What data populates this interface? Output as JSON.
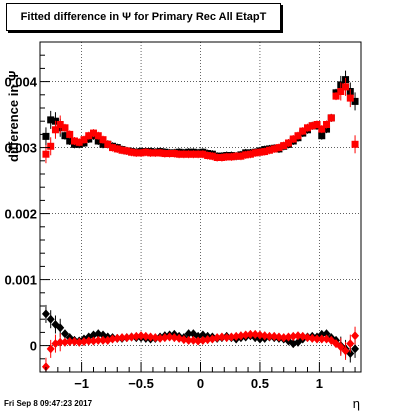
{
  "title": "Fitted difference in Ψ  for Primary Rec All EtapT",
  "footer": "Fri Sep  8 09:47:23 2017",
  "chart_data": {
    "type": "scatter",
    "title": "Fitted difference in Ψ  for Primary Rec All EtapT",
    "xlabel": "η",
    "ylabel": "difference in  Ψ",
    "xlim": [
      -1.35,
      1.35
    ],
    "ylim": [
      -0.0004,
      0.0046
    ],
    "x_ticks": [
      -1,
      -0.5,
      0,
      0.5,
      1
    ],
    "x_tick_labels": [
      "−1",
      "−0.5",
      "0",
      "0.5",
      "1"
    ],
    "y_ticks": [
      0,
      0.001,
      0.002,
      0.003,
      0.004
    ],
    "y_tick_labels": [
      "0",
      "0.001",
      "0.002",
      "0.003",
      "0.004"
    ],
    "grid": true,
    "series": [
      {
        "color": "#000000",
        "marker": "square",
        "x": [
          -1.3,
          -1.26,
          -1.22,
          -1.18,
          -1.14,
          -1.1,
          -1.06,
          -1.02,
          -0.98,
          -0.94,
          -0.9,
          -0.86,
          -0.82,
          -0.78,
          -0.74,
          -0.7,
          -0.66,
          -0.62,
          -0.58,
          -0.54,
          -0.5,
          -0.46,
          -0.42,
          -0.38,
          -0.34,
          -0.3,
          -0.26,
          -0.22,
          -0.18,
          -0.14,
          -0.1,
          -0.06,
          -0.02,
          0.02,
          0.06,
          0.1,
          0.14,
          0.18,
          0.22,
          0.26,
          0.3,
          0.34,
          0.38,
          0.42,
          0.46,
          0.5,
          0.54,
          0.58,
          0.62,
          0.66,
          0.7,
          0.74,
          0.78,
          0.82,
          0.86,
          0.9,
          0.94,
          0.98,
          1.02,
          1.06,
          1.1,
          1.14,
          1.18,
          1.22,
          1.26,
          1.3
        ],
        "y": [
          0.00317,
          0.00342,
          0.0034,
          0.0033,
          0.00318,
          0.0031,
          0.00305,
          0.00305,
          0.00307,
          0.00313,
          0.00318,
          0.0031,
          0.00305,
          0.00305,
          0.00302,
          0.003,
          0.00297,
          0.00295,
          0.00294,
          0.00293,
          0.00294,
          0.00294,
          0.00294,
          0.00293,
          0.00294,
          0.00293,
          0.00292,
          0.00292,
          0.00293,
          0.00292,
          0.00293,
          0.00293,
          0.00292,
          0.00293,
          0.00291,
          0.0029,
          0.00287,
          0.00287,
          0.00288,
          0.00288,
          0.00287,
          0.00289,
          0.00292,
          0.00292,
          0.00293,
          0.00295,
          0.00297,
          0.00298,
          0.00299,
          0.00298,
          0.00302,
          0.00305,
          0.0031,
          0.00315,
          0.00322,
          0.00327,
          0.00333,
          0.00333,
          0.00318,
          0.00328,
          0.00345,
          0.00383,
          0.00395,
          0.00403,
          0.00385,
          0.0037
        ]
      },
      {
        "color": "#ff0000",
        "marker": "square",
        "x": [
          -1.3,
          -1.26,
          -1.22,
          -1.18,
          -1.14,
          -1.1,
          -1.06,
          -1.02,
          -0.98,
          -0.94,
          -0.9,
          -0.86,
          -0.82,
          -0.78,
          -0.74,
          -0.7,
          -0.66,
          -0.62,
          -0.58,
          -0.54,
          -0.5,
          -0.46,
          -0.42,
          -0.38,
          -0.34,
          -0.3,
          -0.26,
          -0.22,
          -0.18,
          -0.14,
          -0.1,
          -0.06,
          -0.02,
          0.02,
          0.06,
          0.1,
          0.14,
          0.18,
          0.22,
          0.26,
          0.3,
          0.34,
          0.38,
          0.42,
          0.46,
          0.5,
          0.54,
          0.58,
          0.62,
          0.66,
          0.7,
          0.74,
          0.78,
          0.82,
          0.86,
          0.9,
          0.94,
          0.98,
          1.02,
          1.06,
          1.1,
          1.14,
          1.18,
          1.22,
          1.26,
          1.3
        ],
        "y": [
          0.0029,
          0.00302,
          0.00327,
          0.00335,
          0.0033,
          0.0032,
          0.0031,
          0.00308,
          0.00312,
          0.00318,
          0.00322,
          0.00318,
          0.00312,
          0.00305,
          0.003,
          0.00298,
          0.00296,
          0.00295,
          0.00293,
          0.00292,
          0.00292,
          0.00293,
          0.00292,
          0.00292,
          0.00292,
          0.00291,
          0.00291,
          0.00291,
          0.0029,
          0.0029,
          0.0029,
          0.0029,
          0.0029,
          0.0029,
          0.00288,
          0.00287,
          0.00285,
          0.00285,
          0.00286,
          0.00286,
          0.00287,
          0.00287,
          0.00289,
          0.0029,
          0.00292,
          0.00293,
          0.00294,
          0.00296,
          0.00298,
          0.003,
          0.00303,
          0.00307,
          0.00313,
          0.00318,
          0.00325,
          0.0033,
          0.00333,
          0.00335,
          0.00328,
          0.00335,
          0.00345,
          0.00378,
          0.00385,
          0.00392,
          0.00375,
          0.00305
        ]
      },
      {
        "color": "#000000",
        "marker": "diamond",
        "x": [
          -1.3,
          -1.26,
          -1.22,
          -1.18,
          -1.14,
          -1.1,
          -1.06,
          -1.02,
          -0.98,
          -0.94,
          -0.9,
          -0.86,
          -0.82,
          -0.78,
          -0.74,
          -0.7,
          -0.66,
          -0.62,
          -0.58,
          -0.54,
          -0.5,
          -0.46,
          -0.42,
          -0.38,
          -0.34,
          -0.3,
          -0.26,
          -0.22,
          -0.18,
          -0.14,
          -0.1,
          -0.06,
          -0.02,
          0.02,
          0.06,
          0.1,
          0.14,
          0.18,
          0.22,
          0.26,
          0.3,
          0.34,
          0.38,
          0.42,
          0.46,
          0.5,
          0.54,
          0.58,
          0.62,
          0.66,
          0.7,
          0.74,
          0.78,
          0.82,
          0.86,
          0.9,
          0.94,
          0.98,
          1.02,
          1.06,
          1.1,
          1.14,
          1.18,
          1.22,
          1.26,
          1.3
        ],
        "y": [
          0.00048,
          0.0004,
          0.00032,
          0.00027,
          0.00018,
          0.00012,
          8e-05,
          7e-05,
          0.0001,
          0.00013,
          0.00016,
          0.00018,
          0.00016,
          0.00013,
          0.00012,
          0.00011,
          0.00011,
          0.00012,
          0.00013,
          0.00012,
          0.00012,
          0.00011,
          0.0001,
          0.00011,
          0.00013,
          0.00015,
          0.00016,
          0.00017,
          0.00014,
          0.00012,
          0.00018,
          0.00018,
          0.00014,
          0.00016,
          0.00014,
          0.00013,
          0.00011,
          0.00012,
          0.00014,
          0.00012,
          0.0001,
          0.00012,
          0.00013,
          0.00015,
          0.00012,
          0.0001,
          0.00011,
          0.00013,
          0.00012,
          0.00011,
          0.0001,
          7e-05,
          3e-05,
          5e-05,
          0.0001,
          0.00013,
          0.00014,
          0.00013,
          0.00017,
          0.00018,
          0.00012,
          8e-05,
          0.0,
          -5e-05,
          -0.00012,
          -5e-05
        ]
      },
      {
        "color": "#ff0000",
        "marker": "diamond",
        "x": [
          -1.3,
          -1.26,
          -1.22,
          -1.18,
          -1.14,
          -1.1,
          -1.06,
          -1.02,
          -0.98,
          -0.94,
          -0.9,
          -0.86,
          -0.82,
          -0.78,
          -0.74,
          -0.7,
          -0.66,
          -0.62,
          -0.58,
          -0.54,
          -0.5,
          -0.46,
          -0.42,
          -0.38,
          -0.34,
          -0.3,
          -0.26,
          -0.22,
          -0.18,
          -0.14,
          -0.1,
          -0.06,
          -0.02,
          0.02,
          0.06,
          0.1,
          0.14,
          0.18,
          0.22,
          0.26,
          0.3,
          0.34,
          0.38,
          0.42,
          0.46,
          0.5,
          0.54,
          0.58,
          0.62,
          0.66,
          0.7,
          0.74,
          0.78,
          0.82,
          0.86,
          0.9,
          0.94,
          0.98,
          1.02,
          1.06,
          1.1,
          1.14,
          1.18,
          1.22,
          1.26,
          1.3
        ],
        "y": [
          -0.00032,
          -5e-05,
          3e-05,
          5e-05,
          5e-05,
          6e-05,
          6e-05,
          5e-05,
          6e-05,
          7e-05,
          7e-05,
          8e-05,
          8e-05,
          8e-05,
          0.0001,
          0.00011,
          0.00012,
          0.00012,
          0.00013,
          0.00014,
          0.00015,
          0.00014,
          0.00013,
          0.00012,
          0.00011,
          0.00012,
          0.00013,
          0.00012,
          0.00011,
          9e-05,
          8e-05,
          8e-05,
          7e-05,
          8e-05,
          9e-05,
          0.0001,
          0.00012,
          0.00013,
          0.00012,
          0.00013,
          0.00014,
          0.00015,
          0.00016,
          0.00017,
          0.00017,
          0.00016,
          0.00015,
          0.00014,
          0.00014,
          0.00013,
          0.00012,
          0.00013,
          0.00014,
          0.00015,
          0.00014,
          0.00012,
          0.00011,
          0.0001,
          0.0001,
          0.0001,
          8e-05,
          3e-05,
          -2e-05,
          -8e-05,
          3e-05,
          0.00015
        ]
      }
    ]
  }
}
